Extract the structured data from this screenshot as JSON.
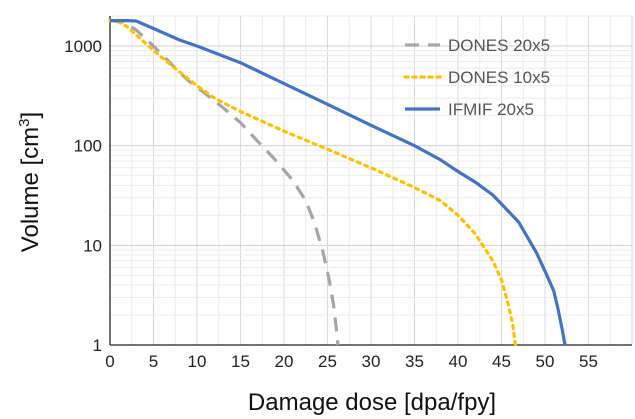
{
  "chart_data": {
    "type": "line",
    "xlabel": "Damage dose [dpa/fpy]",
    "ylabel_main": "Volume [cm",
    "ylabel_sup": "3",
    "ylabel_end": "]",
    "xlim": [
      0,
      60
    ],
    "ylim": [
      1,
      2000
    ],
    "yscale": "log",
    "grid": true,
    "legend_position": "top-right",
    "x_ticks": [
      0,
      5,
      10,
      15,
      20,
      25,
      30,
      35,
      40,
      45,
      50,
      55
    ],
    "y_ticks": [
      {
        "value": 1,
        "label": "1"
      },
      {
        "value": 10,
        "label": "10"
      },
      {
        "value": 100,
        "label": "100"
      },
      {
        "value": 1000,
        "label": "1000"
      }
    ],
    "series": [
      {
        "name": "DONES 20x5",
        "color": "#a6a6a6",
        "dash": "dashed",
        "x": [
          0,
          1.5,
          3,
          4.5,
          6,
          7.5,
          9,
          11,
          13,
          15,
          17,
          19,
          21,
          22.5,
          23.5,
          24.5,
          25.2,
          25.7,
          26.0,
          26.2
        ],
        "y": [
          1800,
          1750,
          1450,
          1100,
          820,
          600,
          450,
          330,
          240,
          170,
          110,
          72,
          45,
          28,
          17,
          8.5,
          4.5,
          2.5,
          1.5,
          1
        ]
      },
      {
        "name": "DONES 10x5",
        "color": "#ffc000",
        "dash": "dotted",
        "x": [
          0,
          1,
          2,
          4,
          6,
          8,
          10,
          12,
          15,
          20,
          25,
          30,
          35,
          38,
          40,
          42,
          44,
          45,
          45.8,
          46.3,
          46.6
        ],
        "y": [
          1800,
          1750,
          1550,
          1080,
          760,
          550,
          400,
          300,
          220,
          140,
          92,
          60,
          38,
          28,
          20,
          13,
          7,
          4.5,
          2.5,
          1.6,
          1
        ]
      },
      {
        "name": "IFMIF 20x5",
        "color": "#4472c4",
        "dash": "solid",
        "x": [
          0,
          2,
          3,
          5,
          8,
          10,
          15,
          20,
          25,
          30,
          35,
          38,
          40,
          42,
          44,
          45,
          46,
          47,
          48,
          49,
          50,
          51,
          51.5,
          52,
          52.3
        ],
        "y": [
          1800,
          1800,
          1780,
          1500,
          1150,
          1000,
          680,
          420,
          260,
          160,
          100,
          72,
          55,
          43,
          32,
          26,
          21,
          17,
          12,
          8.5,
          5.5,
          3.5,
          2.3,
          1.4,
          1
        ]
      }
    ]
  }
}
